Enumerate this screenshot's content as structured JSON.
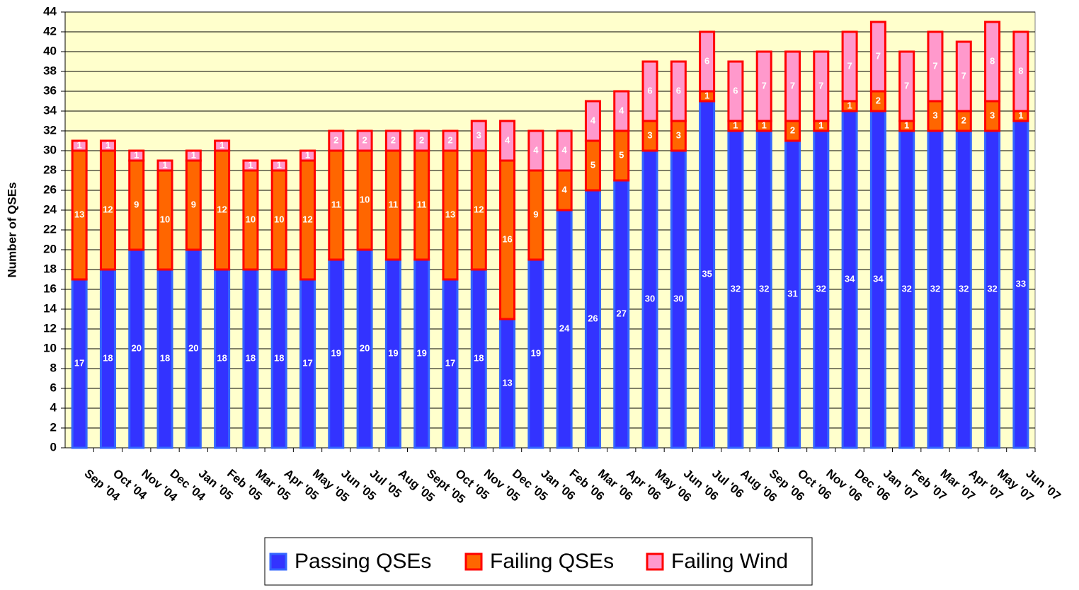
{
  "chart_data": {
    "type": "stacked_bar",
    "y_label": "Number of QSEs",
    "categories": [
      "Sep '04",
      "Oct '04",
      "Nov '04",
      "Dec '04",
      "Jan '05",
      "Feb '05",
      "Mar '05",
      "Apr '05",
      "May '05",
      "Jun '05",
      "Jul '05",
      "Aug '05",
      "Sept '05",
      "Oct '05",
      "Nov '05",
      "Dec '05",
      "Jan '06",
      "Feb '06",
      "Mar '06",
      "Apr '06",
      "May '06",
      "Jun '06",
      "Jul '06",
      "Aug '06",
      "Sep '06",
      "Oct '06",
      "Nov '06",
      "Dec '06",
      "Jan '07",
      "Feb '07",
      "Mar '07",
      "Apr '07",
      "May '07",
      "Jun '07"
    ],
    "series": [
      {
        "name": "Passing QSEs",
        "color": "#3333ff",
        "edgecolor": "#3366ff",
        "values": [
          17,
          18,
          20,
          18,
          20,
          18,
          18,
          18,
          17,
          19,
          20,
          19,
          19,
          17,
          18,
          13,
          19,
          24,
          26,
          27,
          30,
          30,
          35,
          32,
          32,
          31,
          32,
          34,
          34,
          32,
          32,
          32,
          32,
          33
        ]
      },
      {
        "name": "Failing QSEs",
        "color": "#ff6600",
        "edgecolor": "#ff0000",
        "values": [
          13,
          12,
          9,
          10,
          9,
          12,
          10,
          10,
          12,
          11,
          10,
          11,
          11,
          13,
          12,
          16,
          9,
          4,
          5,
          5,
          3,
          3,
          1,
          1,
          1,
          2,
          1,
          1,
          2,
          1,
          3,
          2,
          3,
          1
        ]
      },
      {
        "name": "Failing Wind",
        "color": "#ff99cc",
        "edgecolor": "#ff0000",
        "values": [
          1,
          1,
          1,
          1,
          1,
          1,
          1,
          1,
          1,
          2,
          2,
          2,
          2,
          2,
          3,
          4,
          4,
          4,
          4,
          4,
          6,
          6,
          6,
          6,
          7,
          7,
          7,
          7,
          7,
          7,
          7,
          7,
          8,
          8
        ]
      }
    ],
    "ylim": [
      0,
      44
    ],
    "yticks": [
      0,
      2,
      4,
      6,
      8,
      10,
      12,
      14,
      16,
      18,
      20,
      22,
      24,
      26,
      28,
      30,
      32,
      34,
      36,
      38,
      40,
      42,
      44
    ],
    "grid": true,
    "background": "#ffffcc",
    "legend": "bottom"
  }
}
